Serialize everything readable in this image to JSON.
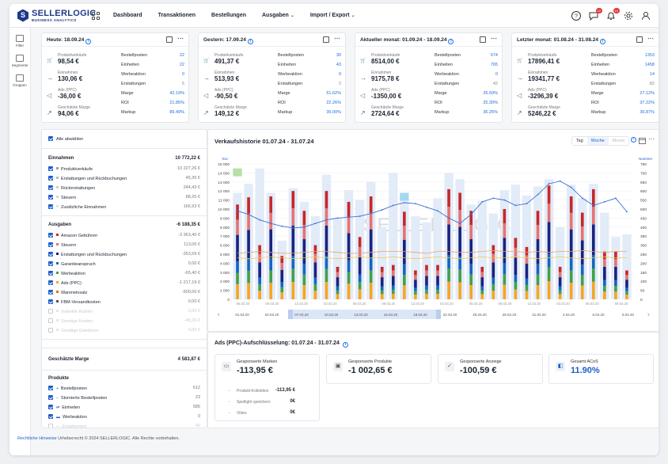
{
  "brand": {
    "name": "SELLERLOGIC",
    "sub": "BUSINESS ANALYTICS"
  },
  "nav": [
    {
      "label": "Dashboard",
      "dropdown": false
    },
    {
      "label": "Transaktionen",
      "dropdown": false
    },
    {
      "label": "Bestellungen",
      "dropdown": false
    },
    {
      "label": "Ausgaben",
      "dropdown": true
    },
    {
      "label": "Import / Export",
      "dropdown": true
    }
  ],
  "badges": {
    "notifications": "10",
    "alerts": "12"
  },
  "sidebar": [
    {
      "label": "Filter",
      "icon": "filter-icon"
    },
    {
      "label": "Segmente",
      "icon": "segments-icon"
    },
    {
      "label": "Gruppen",
      "icon": "groups-icon"
    }
  ],
  "cards": [
    {
      "title": "Heute: 18.09.24",
      "left": [
        {
          "label": "Produktverkäufe",
          "value": "98,54 €",
          "icon": "cart-icon"
        },
        {
          "label": "Einnahmen",
          "value": "130,06 €",
          "icon": "arrow-in-icon"
        },
        {
          "label": "Ads (PPC)",
          "value": "-36,00 €",
          "icon": "megaphone-icon"
        },
        {
          "label": "Geschätzte Marge",
          "value": "94,06 €",
          "icon": "trend-icon"
        }
      ],
      "right": [
        {
          "k": "Bestellposten",
          "v": "22",
          "gray": false
        },
        {
          "k": "Einheiten",
          "v": "22",
          "gray": false
        },
        {
          "k": "Werbeaktion",
          "v": "0",
          "gray": false
        },
        {
          "k": "Erstattungen",
          "v": "5",
          "gray": true
        },
        {
          "k": "Marge",
          "v": "42.19%",
          "gray": false
        },
        {
          "k": "ROI",
          "v": "21.85%",
          "gray": false
        },
        {
          "k": "Markup",
          "v": "89.49%",
          "gray": false
        }
      ]
    },
    {
      "title": "Gestern: 17.09.24",
      "left": [
        {
          "label": "Produktverkäufe",
          "value": "491,37 €",
          "icon": "cart-icon"
        },
        {
          "label": "Einnahmen",
          "value": "513,93 €",
          "icon": "arrow-in-icon"
        },
        {
          "label": "Ads (PPC)",
          "value": "-90,50 €",
          "icon": "megaphone-icon"
        },
        {
          "label": "Geschätzte Marge",
          "value": "149,12 €",
          "icon": "trend-icon"
        }
      ],
      "right": [
        {
          "k": "Bestellposten",
          "v": "30",
          "gray": false
        },
        {
          "k": "Einheiten",
          "v": "43",
          "gray": false
        },
        {
          "k": "Werbeaktion",
          "v": "0",
          "gray": false
        },
        {
          "k": "Erstattungen",
          "v": "2",
          "gray": true
        },
        {
          "k": "Marge",
          "v": "51.62%",
          "gray": false
        },
        {
          "k": "ROI",
          "v": "22.26%",
          "gray": false
        },
        {
          "k": "Markup",
          "v": "35.00%",
          "gray": false
        }
      ]
    },
    {
      "title": "Aktueller monat: 01.09.24 - 18.09.24",
      "left": [
        {
          "label": "Produktverkäufe",
          "value": "8514,00 €",
          "icon": "cart-icon"
        },
        {
          "label": "Einnahmen",
          "value": "9175,78 €",
          "icon": "arrow-in-icon"
        },
        {
          "label": "Ads (PPC)",
          "value": "-1350,00 €",
          "icon": "megaphone-icon"
        },
        {
          "label": "Geschätzte Marge",
          "value": "2724,64 €",
          "icon": "trend-icon"
        }
      ],
      "right": [
        {
          "k": "Bestellposten",
          "v": "674",
          "gray": false
        },
        {
          "k": "Einheiten",
          "v": "765",
          "gray": false
        },
        {
          "k": "Werbeaktion",
          "v": "0",
          "gray": false
        },
        {
          "k": "Erstattungen",
          "v": "42",
          "gray": true
        },
        {
          "k": "Marge",
          "v": "26.69%",
          "gray": false
        },
        {
          "k": "ROI",
          "v": "25.30%",
          "gray": false
        },
        {
          "k": "Markup",
          "v": "36.25%",
          "gray": false
        }
      ]
    },
    {
      "title": "Letzter monat: 01.08.24 - 31.08.24",
      "left": [
        {
          "label": "Produktverkäufe",
          "value": "17896,41 €",
          "icon": "cart-icon"
        },
        {
          "label": "Einnahmen",
          "value": "19341,77 €",
          "icon": "arrow-in-icon"
        },
        {
          "label": "Ads (PPC)",
          "value": "-3296,39 €",
          "icon": "megaphone-icon"
        },
        {
          "label": "Geschätzte Marge",
          "value": "5246,22 €",
          "icon": "trend-icon"
        }
      ],
      "right": [
        {
          "k": "Bestellposten",
          "v": "1353",
          "gray": false
        },
        {
          "k": "Einheiten",
          "v": "1458",
          "gray": false
        },
        {
          "k": "Werbeaktion",
          "v": "14",
          "gray": false
        },
        {
          "k": "Erstattungen",
          "v": "82",
          "gray": true
        },
        {
          "k": "Marge",
          "v": "27.12%",
          "gray": false
        },
        {
          "k": "ROI",
          "v": "37.22%",
          "gray": false
        },
        {
          "k": "Markup",
          "v": "36.87%",
          "gray": false
        }
      ]
    }
  ],
  "filter": {
    "deselect_all": "Alle abwählen",
    "sections": [
      {
        "title": "Einnahmen",
        "total": "10 772,22 €",
        "rows": [
          {
            "label": "Produktverkäufe",
            "amount": "10 227,26 €",
            "color": "#9aa0a8",
            "checked": true
          },
          {
            "label": "Erstattungen und Rückbuchungen",
            "amount": "45,35 €",
            "color": "#b7bcc3",
            "checked": true
          },
          {
            "label": "Rückerstattungen",
            "amount": "244,43 €",
            "color": "#c9cdd3",
            "checked": true
          },
          {
            "label": "Steuern",
            "amount": "88,25 €",
            "color": "#d4d7dc",
            "checked": true
          },
          {
            "label": "Zusätzliche Einnahmen",
            "amount": "166,93 €",
            "color": "#dde0e4",
            "checked": true
          }
        ]
      },
      {
        "title": "Ausgaben",
        "total": "-6 188,35 €",
        "rows": [
          {
            "label": "Amazon Gebühren",
            "amount": "-3 363,40 €",
            "color": "#c62828",
            "checked": true
          },
          {
            "label": "Steuern",
            "amount": "113,05 €",
            "color": "#e57373",
            "checked": true
          },
          {
            "label": "Erstattungen und Rückbuchungen",
            "amount": "-353,59 €",
            "color": "#1a237e",
            "checked": true
          },
          {
            "label": "Garantieanspruch",
            "amount": "0,00 €",
            "color": "#1565c0",
            "checked": true
          },
          {
            "label": "Werbeaktion",
            "amount": "-65,40 €",
            "color": "#43a047",
            "checked": true
          },
          {
            "label": "Ads (PPC)",
            "amount": "-1 217,19 €",
            "color": "#f9a825",
            "checked": true
          },
          {
            "label": "Wareneinsatz",
            "amount": "-500,00 €",
            "color": "#ef6c00",
            "checked": true
          },
          {
            "label": "FBM-Versandkosten",
            "amount": "0,00 €",
            "color": "#455a64",
            "checked": true
          },
          {
            "label": "Indirekte Kosten",
            "amount": "0,00 €",
            "color": "#cfd8dc",
            "checked": false
          },
          {
            "label": "Sonstige Kosten",
            "amount": "-48,26 €",
            "color": "#cfd8dc",
            "checked": false
          },
          {
            "label": "Sonstige Gebühren",
            "amount": "0,00 €",
            "color": "#cfd8dc",
            "checked": false
          }
        ]
      }
    ],
    "margin": {
      "label": "Geschätzte Marge",
      "value": "4 583,87 €"
    },
    "products": {
      "title": "Produkte",
      "rows": [
        {
          "label": "Bestellposten",
          "amount": "512",
          "checked": true
        },
        {
          "label": "Stornierte Bestellposten",
          "amount": "23",
          "checked": true
        },
        {
          "label": "Einheiten",
          "amount": "585",
          "checked": true
        },
        {
          "label": "Werbeaktion",
          "amount": "0",
          "checked": true
        },
        {
          "label": "Erstattungen",
          "amount": "40",
          "checked": false
        }
      ]
    }
  },
  "chart": {
    "title": "Verkaufshistorie 01.07.24 - 31.07.24",
    "tabs": [
      {
        "label": "Tag",
        "state": "normal"
      },
      {
        "label": "Woche",
        "state": "active"
      },
      {
        "label": "Monat",
        "state": "dim"
      }
    ],
    "watermark": "SELLERLOGIC",
    "left_unit": "Eur",
    "right_unit": "Nummer",
    "nav_dates": [
      "01.03.20",
      "04.03.20",
      "07.03.20",
      "10.03.20",
      "13.03.20",
      "16.03.20",
      "19.03.20",
      "22.03.20",
      "25.03.20",
      "28.03.20",
      "31.03.20",
      "3.04.20",
      "6.04.20",
      "9.04.20"
    ]
  },
  "chart_data": {
    "type": "bar",
    "yleft_ticks": [
      "15 000",
      "14 000",
      "13 000",
      "12 000",
      "11 000",
      "10 000",
      "9 000",
      "8 000",
      "7 000",
      "6 000",
      "5 000",
      "4 000",
      "3 000",
      "2 000",
      "1 000",
      "0"
    ],
    "yright_ticks": [
      "750",
      "700",
      "650",
      "600",
      "550",
      "500",
      "450",
      "400",
      "350",
      "300",
      "250",
      "200",
      "150",
      "100",
      "50",
      "0"
    ],
    "ylim_left": [
      0,
      15000
    ],
    "ylim_right": [
      0,
      750
    ],
    "x_labels": [
      "06.03.20",
      "09.03.20",
      "12.03.20",
      "03.03.20",
      "06.03.20",
      "09.03.20",
      "12.03.20",
      "03.03.20",
      "06.03.20",
      "09.03.20",
      "12.03.20",
      "03.03.20",
      "06.03.20",
      "09.03.20"
    ],
    "bars": [
      {
        "total": 10500,
        "revenue": 11800
      },
      {
        "total": 11300,
        "revenue": 12800
      },
      {
        "total": 6000,
        "revenue": 14500
      },
      {
        "total": 11400,
        "revenue": 11800
      },
      {
        "total": 4800,
        "revenue": 6500
      },
      {
        "total": 12000,
        "revenue": 12300
      },
      {
        "total": 9800,
        "revenue": 10800
      },
      {
        "total": 6000,
        "revenue": 9200
      },
      {
        "total": 12000,
        "revenue": 13800
      },
      {
        "total": 3600,
        "revenue": 9000
      },
      {
        "total": 10800,
        "revenue": 12100
      },
      {
        "total": 6900,
        "revenue": 11000
      },
      {
        "total": 11400,
        "revenue": 13000
      },
      {
        "total": 3600,
        "revenue": 8000
      },
      {
        "total": 3800,
        "revenue": 14000
      },
      {
        "total": 9700,
        "revenue": 11500
      },
      {
        "total": 3200,
        "revenue": 9200
      },
      {
        "total": 3800,
        "revenue": 8500
      },
      {
        "total": 3800,
        "revenue": 11200
      },
      {
        "total": 12200,
        "revenue": 14000
      },
      {
        "total": 11800,
        "revenue": 13300
      },
      {
        "total": 9800,
        "revenue": 10500
      },
      {
        "total": 3600,
        "revenue": 10900
      },
      {
        "total": 6000,
        "revenue": 9500
      },
      {
        "total": 10000,
        "revenue": 12100
      },
      {
        "total": 6800,
        "revenue": 12700
      },
      {
        "total": 5800,
        "revenue": 11500
      },
      {
        "total": 9800,
        "revenue": 12500
      },
      {
        "total": 12600,
        "revenue": 13300
      },
      {
        "total": 3600,
        "revenue": 8000
      },
      {
        "total": 11400,
        "revenue": 12700
      },
      {
        "total": 9600,
        "revenue": 11200
      },
      {
        "total": 12200,
        "revenue": 12800
      },
      {
        "total": 5300,
        "revenue": 9600
      },
      {
        "total": 5300,
        "revenue": 6900
      },
      {
        "total": 3200,
        "revenue": 7200
      }
    ],
    "line_units": [
      490,
      470,
      440,
      420,
      405,
      395,
      400,
      420,
      440,
      450,
      455,
      460,
      475,
      495,
      520,
      535,
      530,
      510,
      490,
      450,
      420,
      470,
      540,
      560,
      550,
      520,
      530,
      580,
      640,
      655,
      620,
      560,
      520,
      540,
      560,
      485
    ],
    "line_orange": [
      5100,
      5200,
      5300,
      5200,
      5100,
      5100,
      5200,
      5300,
      5300,
      5200,
      5100,
      5100,
      5200,
      5300,
      5300,
      5300,
      5200,
      5100,
      5300,
      5300,
      5200,
      5200,
      5300,
      5400,
      5300,
      5300,
      5200,
      5300,
      5200,
      5300,
      5300,
      5400,
      5300,
      5200,
      5300,
      5300
    ],
    "line_yellow": [
      4600,
      4500,
      4600,
      4700,
      4600,
      4500,
      4600,
      4700,
      4600,
      4500,
      4600,
      4700,
      4600,
      4600,
      4700,
      4600,
      4500,
      4600,
      4700,
      4600,
      4500,
      4600,
      4700,
      4600,
      4600,
      4700,
      4600,
      4500,
      4600,
      4700,
      4600,
      4500,
      4600,
      4700,
      4600,
      4600
    ],
    "segment_colors": [
      "#f5a623",
      "#43a047",
      "#1565c0",
      "#1a237e",
      "#e57373",
      "#c62828"
    ],
    "segment_shares": [
      0.16,
      0.12,
      0.12,
      0.28,
      0.16,
      0.16
    ],
    "highlight": [
      {
        "index": 0,
        "color": "#b7dfa6",
        "value": 14500
      },
      {
        "index": 15,
        "color": "#a5d8f0",
        "value": 11800
      }
    ]
  },
  "ppc": {
    "title": "Ads (PPC)-Aufschlüsselung: 01.07.24 - 31.07.24",
    "cards": [
      {
        "label": "Gesponserte Marken",
        "value": "-113,95 €",
        "icon": "monitor-icon",
        "blue": false
      },
      {
        "label": "Gesponserte Produkte",
        "value": "-1 002,65 €",
        "icon": "box-icon",
        "blue": false
      },
      {
        "label": "Gesponserte Anzeige",
        "value": "-100,59 €",
        "icon": "target-icon",
        "blue": false
      },
      {
        "label": "Gesamt ACoS",
        "value": "11.90%",
        "icon": "acos-icon",
        "blue": true
      }
    ],
    "breakdown": [
      {
        "label": "Produkt-Kollektion",
        "value": "-113,95 €"
      },
      {
        "label": "Spotlight speichern",
        "value": "0€"
      },
      {
        "label": "Video",
        "value": "0€"
      }
    ]
  },
  "footer": {
    "link": "Rechtliche Hinweise",
    "text": "Urheberrecht © 2024 SELLERLOGIC. Alle Rechte vorbehalten."
  }
}
